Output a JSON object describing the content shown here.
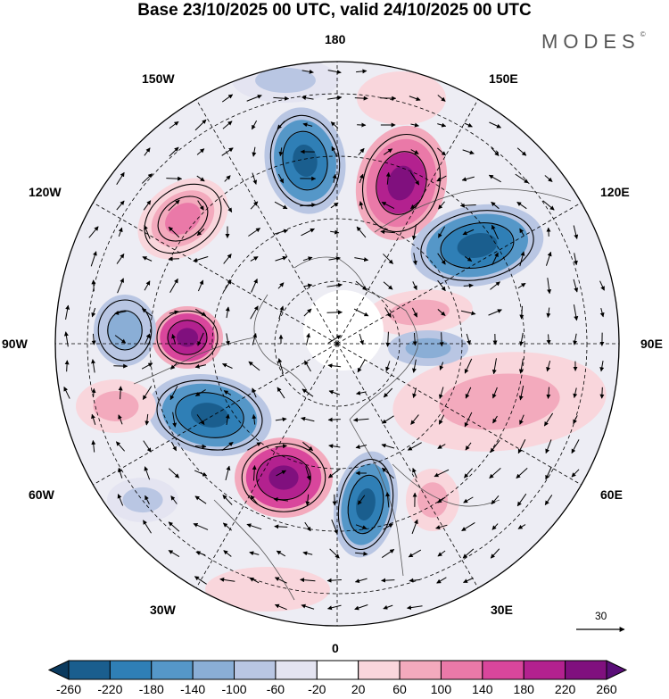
{
  "title": "Base 23/10/2025 00 UTC, valid 24/10/2025 00 UTC",
  "brand": "MODES",
  "brand_mark": "©",
  "longitude_labels": {
    "top": "180",
    "bottom": "0",
    "left": "90W",
    "right": "90E",
    "upper_left_1": "150W",
    "upper_left_2": "120W",
    "lower_left_1": "60W",
    "lower_left_2": "30W",
    "upper_right_1": "150E",
    "upper_right_2": "120E",
    "lower_right_1": "60E",
    "lower_right_2": "30E"
  },
  "vector_scale_label": "30",
  "colorbar": {
    "labels": [
      "-260",
      "-220",
      "-180",
      "-140",
      "-100",
      "-60",
      "-20",
      "20",
      "60",
      "100",
      "140",
      "180",
      "220",
      "260"
    ],
    "colors": [
      "#0b3a5e",
      "#1a5e8e",
      "#2f7fb6",
      "#5597c8",
      "#8aaed6",
      "#b9c6e3",
      "#e4e4f1",
      "#ffffff",
      "#f9d6dc",
      "#f3aabd",
      "#ea79a8",
      "#d9469c",
      "#b3218f",
      "#80107e",
      "#5a0e78"
    ]
  }
}
